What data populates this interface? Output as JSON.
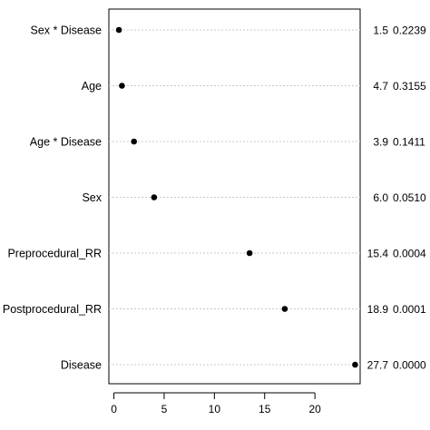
{
  "chart_data": {
    "type": "scatter",
    "title": "",
    "xlabel": "",
    "ylabel": "",
    "xlim": [
      -0.5,
      24.5
    ],
    "xticks": [
      0,
      5,
      10,
      15,
      20
    ],
    "grid": "dotted horizontal guides per row",
    "rows": [
      {
        "label": "Sex * Disease",
        "x": 0.5,
        "chisq": "1.5",
        "p": "0.2239"
      },
      {
        "label": "Age",
        "x": 0.8,
        "chisq": "4.7",
        "p": "0.3155"
      },
      {
        "label": "Age * Disease",
        "x": 2.0,
        "chisq": "3.9",
        "p": "0.1411"
      },
      {
        "label": "Sex",
        "x": 4.0,
        "chisq": "6.0",
        "p": "0.0510"
      },
      {
        "label": "Preprocedural_RR",
        "x": 13.5,
        "chisq": "15.4",
        "p": "0.0004"
      },
      {
        "label": "Postprocedural_RR",
        "x": 17.0,
        "chisq": "18.9",
        "p": "0.0001"
      },
      {
        "label": "Disease",
        "x": 24.0,
        "chisq": "27.7",
        "p": "0.0000"
      }
    ]
  }
}
